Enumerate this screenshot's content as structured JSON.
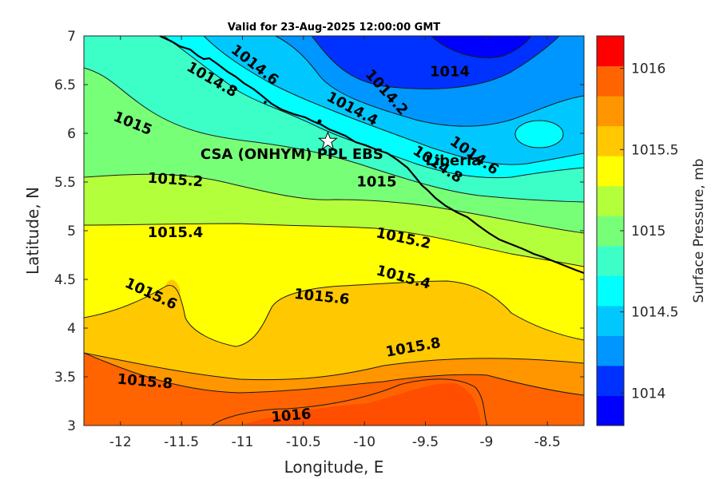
{
  "title": "Valid for 23-Aug-2025 12:00:00 GMT",
  "map": {
    "xlabel": "Longitude, E",
    "ylabel": "Latitude, N",
    "xlim": [
      -12.3,
      -8.2
    ],
    "ylim": [
      3,
      7
    ],
    "xticks": [
      "-12",
      "-11.5",
      "-11",
      "-10.5",
      "-10",
      "-9.5",
      "-9",
      "-8.5"
    ],
    "yticks": [
      "3",
      "3.5",
      "4",
      "4.5",
      "5",
      "5.5",
      "6",
      "6.5",
      "7"
    ],
    "variable": "Surface Pressure",
    "units": "mb",
    "contour_interval": 0.2,
    "contour_labels": [
      {
        "text": "1014.6",
        "lon": -10.9,
        "lat": 6.7,
        "angle": 38
      },
      {
        "text": "1014.8",
        "lon": -11.25,
        "lat": 6.55,
        "angle": 30
      },
      {
        "text": "1014.2",
        "lon": -9.82,
        "lat": 6.42,
        "angle": 48
      },
      {
        "text": "1014",
        "lon": -9.3,
        "lat": 6.63,
        "angle": 0
      },
      {
        "text": "1014.4",
        "lon": -10.1,
        "lat": 6.25,
        "angle": 28
      },
      {
        "text": "1015",
        "lon": -11.9,
        "lat": 6.1,
        "angle": 22
      },
      {
        "text": "1014.6",
        "lon": -9.1,
        "lat": 5.77,
        "angle": 35
      },
      {
        "text": "1014.8",
        "lon": -9.4,
        "lat": 5.68,
        "angle": 33
      },
      {
        "text": "1015.2",
        "lon": -11.55,
        "lat": 5.52,
        "angle": 4
      },
      {
        "text": "1015",
        "lon": -9.9,
        "lat": 5.5,
        "angle": 0
      },
      {
        "text": "1015.4",
        "lon": -11.55,
        "lat": 4.98,
        "angle": 0
      },
      {
        "text": "1015.2",
        "lon": -9.68,
        "lat": 4.92,
        "angle": 12
      },
      {
        "text": "1015.4",
        "lon": -9.68,
        "lat": 4.52,
        "angle": 15
      },
      {
        "text": "1015.6",
        "lon": -11.75,
        "lat": 4.35,
        "angle": 25
      },
      {
        "text": "1015.6",
        "lon": -10.35,
        "lat": 4.32,
        "angle": 6
      },
      {
        "text": "1015.8",
        "lon": -9.6,
        "lat": 3.8,
        "angle": -10
      },
      {
        "text": "1015.8",
        "lon": -11.8,
        "lat": 3.45,
        "angle": 5
      },
      {
        "text": "1016",
        "lon": -10.6,
        "lat": 3.1,
        "angle": -5
      }
    ],
    "site": {
      "label": "CSA (ONHYM) PPL EBS",
      "lon": -10.3,
      "lat": 5.92
    },
    "country_label": {
      "text": "Liberia",
      "lon": -9.5,
      "lat": 5.72
    }
  },
  "colorbar": {
    "label": "Surface Pressure, mb",
    "min": 1013.8,
    "max": 1016.2,
    "ticks": [
      "1014",
      "1014.5",
      "1015",
      "1015.5",
      "1016"
    ],
    "colors": [
      "#0000ff",
      "#0032ff",
      "#0096ff",
      "#00c8ff",
      "#00ffff",
      "#3cffc8",
      "#78ff78",
      "#b4ff3c",
      "#ffff00",
      "#ffc800",
      "#ff9600",
      "#ff6400",
      "#ff0000"
    ]
  }
}
